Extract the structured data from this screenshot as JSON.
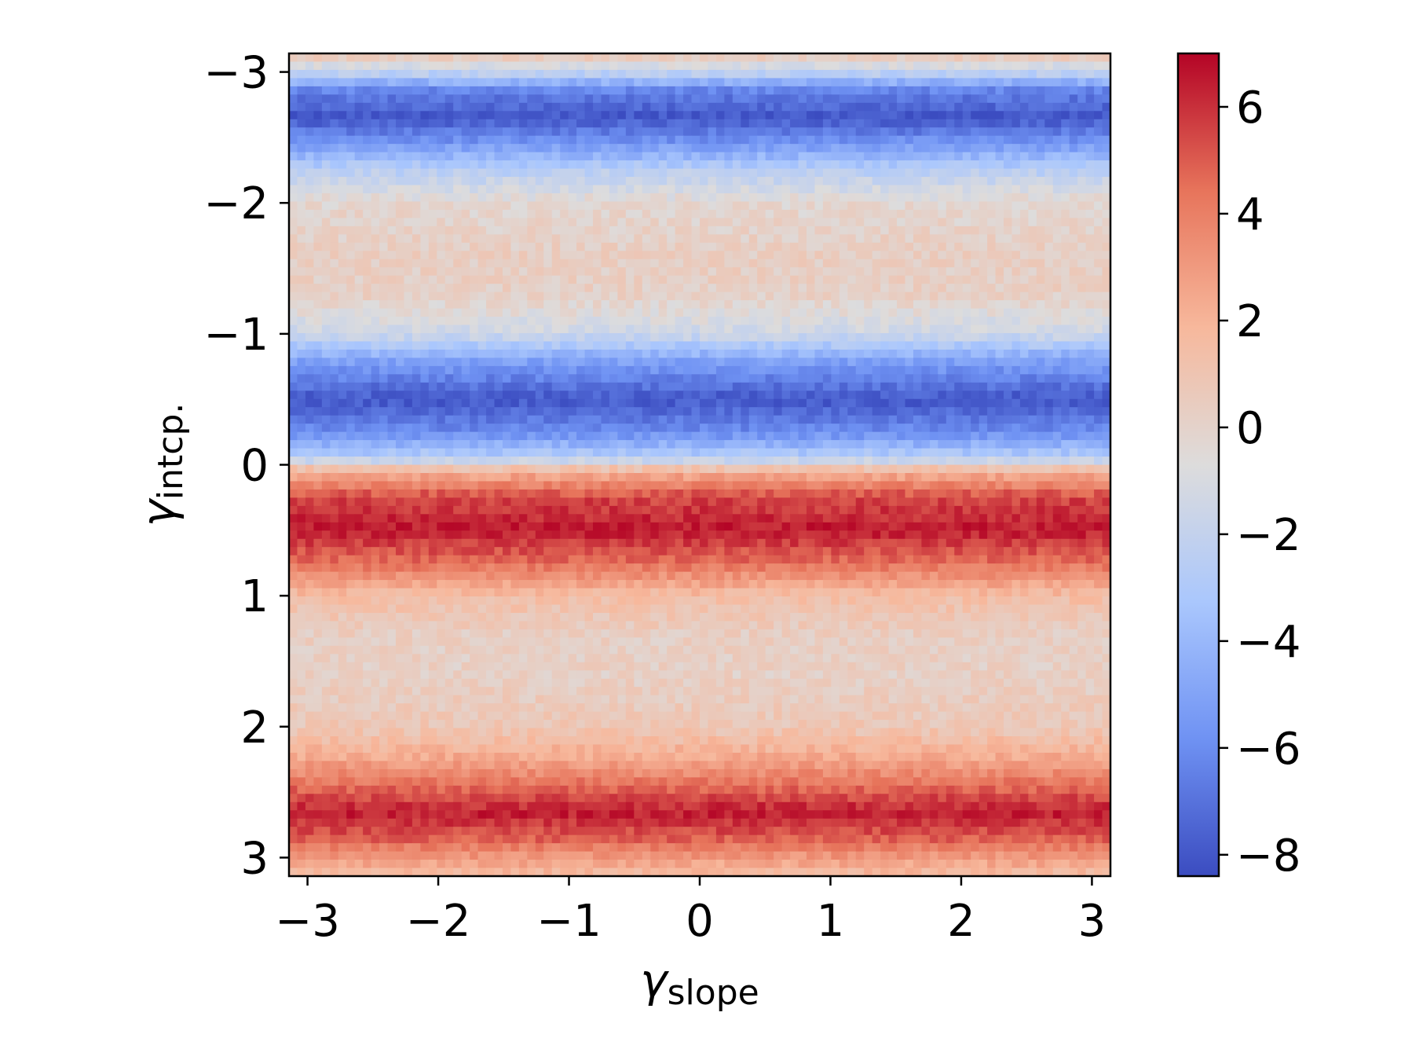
{
  "chart_data": {
    "type": "heatmap",
    "title": "",
    "xlabel": "γ",
    "xlabel_sub": "slope",
    "ylabel": "γ",
    "ylabel_sub": "intcp.",
    "xlim": [
      -3.14159,
      3.14159
    ],
    "ylim": [
      3.14159,
      -3.14159
    ],
    "y_axis_inverted": true,
    "x_ticks": [
      -3,
      -2,
      -1,
      0,
      1,
      2,
      3
    ],
    "x_tick_labels": [
      "−3",
      "−2",
      "−1",
      "0",
      "1",
      "2",
      "3"
    ],
    "y_ticks": [
      -3,
      -2,
      -1,
      0,
      1,
      2,
      3
    ],
    "y_tick_labels": [
      "−3",
      "−2",
      "−1",
      "0",
      "1",
      "2",
      "3"
    ],
    "grid": false,
    "colormap": "coolwarm",
    "colormap_stops": [
      "#3b4cc0",
      "#6f92f3",
      "#aac7fd",
      "#dddcdc",
      "#f7b89c",
      "#e7745b",
      "#b40426"
    ],
    "colorbar": {
      "placement": "right",
      "vmin": -8.4,
      "vmax": 7.0,
      "ticks": [
        -8,
        -6,
        -4,
        -2,
        0,
        2,
        4,
        6
      ],
      "tick_labels": [
        "−8",
        "−6",
        "−4",
        "−2",
        "0",
        "2",
        "4",
        "6"
      ]
    },
    "y_profile": {
      "description_units": "heatmap value as a function of γ_intcp. (approximately constant along γ_slope)",
      "y": [
        -3.14,
        -3.0,
        -2.85,
        -2.65,
        -2.45,
        -2.25,
        -2.0,
        -1.6,
        -1.3,
        -1.0,
        -0.8,
        -0.5,
        -0.25,
        -0.05,
        0.05,
        0.25,
        0.5,
        0.75,
        1.0,
        1.3,
        1.6,
        2.0,
        2.25,
        2.5,
        2.65,
        2.85,
        3.0,
        3.14
      ],
      "values": [
        1.0,
        -2.0,
        -6.5,
        -8.0,
        -5.5,
        -2.5,
        -0.2,
        0.3,
        0.2,
        -1.5,
        -5.0,
        -8.0,
        -6.0,
        -2.5,
        2.0,
        5.5,
        6.5,
        4.5,
        1.5,
        0.3,
        0.2,
        0.8,
        2.5,
        5.0,
        6.5,
        5.0,
        3.0,
        1.5
      ]
    }
  }
}
